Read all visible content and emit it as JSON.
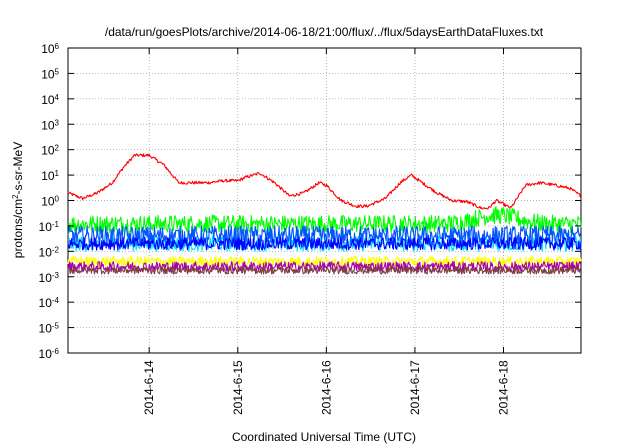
{
  "chart_data": {
    "type": "line",
    "title": "/data/run/goesPlots/archive/2014-06-18/21:00/flux/../flux/5daysEarthDataFluxes.txt",
    "xlabel": "Coordinated Universal Time (UTC)",
    "ylabel": "protons/cm2-s-sr-MeV",
    "ylabel_parts": {
      "base": "protons/cm",
      "sup": "2",
      "rest": "-s-sr-MeV"
    },
    "y_scale": "log",
    "ylim": [
      1e-06,
      1000000.0
    ],
    "xlim": [
      "2014-06-13T02:00",
      "2014-06-18T21:00"
    ],
    "grid": true,
    "legend": "none",
    "y_ticks": [
      {
        "value": 1e-06,
        "base": "10",
        "exp": "-6"
      },
      {
        "value": 1e-05,
        "base": "10",
        "exp": "-5"
      },
      {
        "value": 0.0001,
        "base": "10",
        "exp": "-4"
      },
      {
        "value": 0.001,
        "base": "10",
        "exp": "-3"
      },
      {
        "value": 0.01,
        "base": "10",
        "exp": "-2"
      },
      {
        "value": 0.1,
        "base": "10",
        "exp": "-1"
      },
      {
        "value": 1,
        "base": "10",
        "exp": "0"
      },
      {
        "value": 10,
        "base": "10",
        "exp": "1"
      },
      {
        "value": 100,
        "base": "10",
        "exp": "2"
      },
      {
        "value": 1000,
        "base": "10",
        "exp": "3"
      },
      {
        "value": 10000,
        "base": "10",
        "exp": "4"
      },
      {
        "value": 100000,
        "base": "10",
        "exp": "5"
      },
      {
        "value": 1000000,
        "base": "10",
        "exp": "6"
      }
    ],
    "x_ticks": [
      {
        "date": "2014-06-14T00:00",
        "label": "2014-6-14"
      },
      {
        "date": "2014-06-15T00:00",
        "label": "2014-6-15"
      },
      {
        "date": "2014-06-16T00:00",
        "label": "2014-6-16"
      },
      {
        "date": "2014-06-17T00:00",
        "label": "2014-6-17"
      },
      {
        "date": "2014-06-18T00:00",
        "label": "2014-6-18"
      }
    ],
    "series": [
      {
        "color": "#ff0000",
        "noise": 0.06,
        "x": [
          "2014-06-13T02:00",
          "2014-06-13T06:00",
          "2014-06-13T10:00",
          "2014-06-13T14:00",
          "2014-06-13T17:00",
          "2014-06-13T20:00",
          "2014-06-14T00:00",
          "2014-06-14T04:00",
          "2014-06-14T08:00",
          "2014-06-14T12:00",
          "2014-06-14T16:00",
          "2014-06-14T20:00",
          "2014-06-15T00:00",
          "2014-06-15T02:00",
          "2014-06-15T06:00",
          "2014-06-15T10:00",
          "2014-06-15T14:00",
          "2014-06-15T18:00",
          "2014-06-15T22:00",
          "2014-06-16T00:00",
          "2014-06-16T04:00",
          "2014-06-16T08:00",
          "2014-06-16T11:00",
          "2014-06-16T14:00",
          "2014-06-16T16:00",
          "2014-06-16T20:00",
          "2014-06-16T23:00",
          "2014-06-17T02:00",
          "2014-06-17T06:00",
          "2014-06-17T10:00",
          "2014-06-17T14:00",
          "2014-06-17T18:00",
          "2014-06-17T20:00",
          "2014-06-17T22:00",
          "2014-06-18T02:00",
          "2014-06-18T06:00",
          "2014-06-18T10:00",
          "2014-06-18T14:00",
          "2014-06-18T18:00",
          "2014-06-18T21:00"
        ],
        "y": [
          2,
          1.2,
          2,
          5,
          20,
          60,
          60,
          25,
          5,
          5,
          5,
          6,
          6,
          8,
          12,
          5,
          1.5,
          2,
          5,
          4,
          1,
          0.6,
          0.6,
          0.9,
          1.2,
          5,
          10,
          5,
          2,
          1,
          0.9,
          0.5,
          0.5,
          1,
          0.5,
          4,
          5,
          4,
          3,
          1.5
        ]
      },
      {
        "color": "#00ff00",
        "base": 0.12,
        "noise": 0.35,
        "bumps": [
          {
            "at": "2014-06-17T22:00",
            "factor": 2.2
          }
        ]
      },
      {
        "color": "#00ddff",
        "base": 0.02,
        "noise": 0.3
      },
      {
        "color": "#0055ff",
        "base": 0.04,
        "noise": 0.4
      },
      {
        "color": "#0000ff",
        "base": 0.02,
        "noise": 0.25
      },
      {
        "color": "#ffff00",
        "base": 0.004,
        "noise": 0.2
      },
      {
        "color": "#aa00aa",
        "base": 0.0025,
        "noise": 0.2
      },
      {
        "color": "#804040",
        "base": 0.0018,
        "noise": 0.15
      }
    ]
  }
}
